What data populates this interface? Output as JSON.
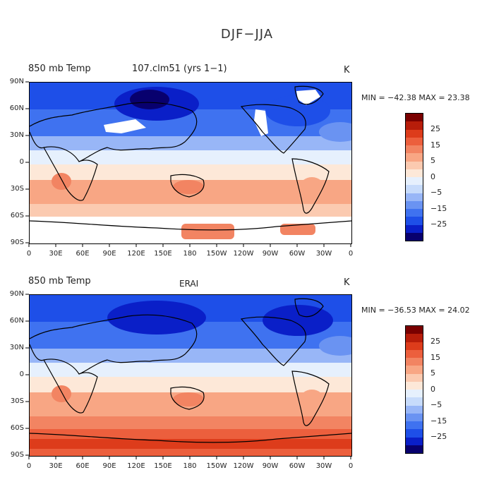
{
  "main_title": "DJF−JJA",
  "colors": [
    "#08006e",
    "#0a1fc8",
    "#1e4fe8",
    "#3f72f0",
    "#6a93f2",
    "#98b6f7",
    "#c7dbfb",
    "#e6f0fd",
    "#fde8d8",
    "#fbcab0",
    "#f8a684",
    "#f28462",
    "#ec5f3d",
    "#dd3c1b",
    "#b71d0a",
    "#7a0000"
  ],
  "colorbar": {
    "labels": [
      "25",
      "15",
      "5",
      "0",
      "−5",
      "−15",
      "−25"
    ]
  },
  "axes": {
    "lat_labels": [
      "90N",
      "60N",
      "30N",
      "0",
      "30S",
      "60S",
      "90S"
    ],
    "lon_labels": [
      "0",
      "30E",
      "60E",
      "90E",
      "120E",
      "150E",
      "180",
      "150W",
      "120W",
      "90W",
      "60W",
      "30W",
      "0"
    ]
  },
  "panels": [
    {
      "var_label": "850 mb Temp",
      "case_label": "107.clm51 (yrs 1−1)",
      "units": "K",
      "min_max": "MIN = −42.38 MAX =  23.38"
    },
    {
      "var_label": "850 mb Temp",
      "case_label": "ERAI",
      "units": "K",
      "min_max": "MIN = −36.53 MAX =  24.02"
    }
  ],
  "chart_data": [
    {
      "type": "heatmap",
      "title": "DJF−JJA",
      "subtitle": "850 mb Temp 107.clm51 (yrs 1−1)",
      "units": "K",
      "min": -42.38,
      "max": 23.38,
      "contour_levels": [
        -30,
        -25,
        -20,
        -15,
        -10,
        -5,
        -2,
        0,
        2,
        5,
        10,
        15,
        20,
        25,
        30
      ],
      "x_range": [
        0,
        360
      ],
      "y_range": [
        -90,
        90
      ],
      "bands": [
        {
          "lat": "60N-90N",
          "approx_value": -20
        },
        {
          "lat": "30N-60N",
          "approx_value": -12
        },
        {
          "lat": "0-30N",
          "approx_value": -4
        },
        {
          "lat": "0-30S",
          "approx_value": 4
        },
        {
          "lat": "30S-60S",
          "approx_value": 7
        },
        {
          "lat": "60S-90S",
          "approx_value": 12
        }
      ]
    },
    {
      "type": "heatmap",
      "title": "DJF−JJA",
      "subtitle": "850 mb Temp ERAI",
      "units": "K",
      "min": -36.53,
      "max": 24.02,
      "contour_levels": [
        -30,
        -25,
        -20,
        -15,
        -10,
        -5,
        -2,
        0,
        2,
        5,
        10,
        15,
        20,
        25,
        30
      ],
      "x_range": [
        0,
        360
      ],
      "y_range": [
        -90,
        90
      ],
      "bands": [
        {
          "lat": "60N-90N",
          "approx_value": -18
        },
        {
          "lat": "30N-60N",
          "approx_value": -14
        },
        {
          "lat": "0-30N",
          "approx_value": -4
        },
        {
          "lat": "0-30S",
          "approx_value": 4
        },
        {
          "lat": "30S-60S",
          "approx_value": 7
        },
        {
          "lat": "60S-90S",
          "approx_value": 16
        }
      ]
    }
  ]
}
